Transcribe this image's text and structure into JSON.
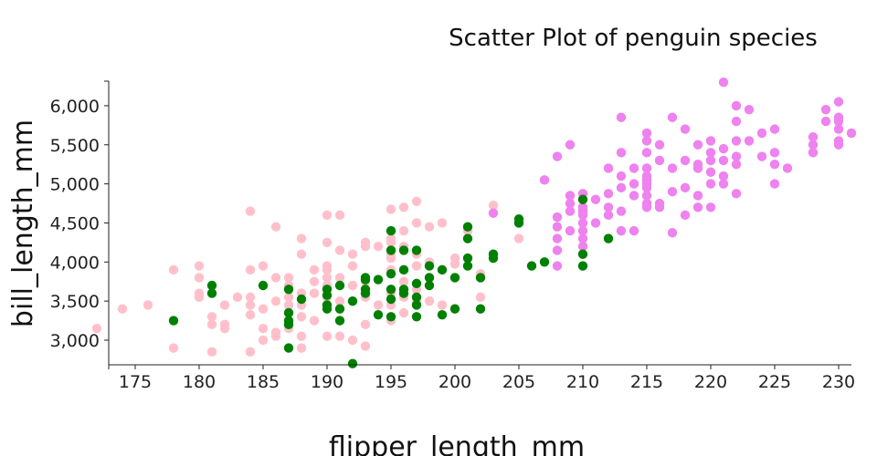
{
  "chart_data": {
    "type": "scatter",
    "title": "Scatter Plot of penguin species",
    "xlabel": "flipper_length_mm",
    "ylabel": "bill_length_mm",
    "xlim": [
      171.9,
      231
    ],
    "ylim": [
      2680,
      6320
    ],
    "x_ticks": [
      175,
      180,
      185,
      190,
      195,
      200,
      205,
      210,
      215,
      220,
      225,
      230
    ],
    "x_tick_labels": [
      "175",
      "180",
      "185",
      "190",
      "195",
      "200",
      "205",
      "210",
      "215",
      "220",
      "225",
      "230"
    ],
    "y_ticks": [
      3000,
      3500,
      4000,
      4500,
      5000,
      5500,
      6000
    ],
    "y_tick_labels": [
      "3,000",
      "3,500",
      "4,000",
      "4,500",
      "5,000",
      "5,500",
      "6,000"
    ],
    "grid": false,
    "legend": "none",
    "series": [
      {
        "color": "#ffc0cb",
        "points": [
          [
            172,
            3150
          ],
          [
            174,
            3400
          ],
          [
            176,
            3450
          ],
          [
            178,
            3900
          ],
          [
            178,
            2900
          ],
          [
            180,
            3950
          ],
          [
            180,
            3800
          ],
          [
            180,
            3600
          ],
          [
            180,
            3550
          ],
          [
            181,
            3300
          ],
          [
            181,
            3200
          ],
          [
            181,
            2850
          ],
          [
            182,
            3450
          ],
          [
            182,
            3200
          ],
          [
            182,
            3150
          ],
          [
            183,
            3550
          ],
          [
            184,
            4650
          ],
          [
            184,
            3900
          ],
          [
            184,
            3550
          ],
          [
            184,
            3450
          ],
          [
            184,
            3325
          ],
          [
            184,
            2850
          ],
          [
            185,
            3950
          ],
          [
            185,
            3400
          ],
          [
            185,
            3150
          ],
          [
            185,
            3000
          ],
          [
            186,
            4450
          ],
          [
            186,
            3800
          ],
          [
            186,
            3500
          ],
          [
            186,
            3100
          ],
          [
            186,
            3050
          ],
          [
            187,
            3800
          ],
          [
            187,
            3700
          ],
          [
            187,
            3550
          ],
          [
            187,
            3450
          ],
          [
            187,
            3350
          ],
          [
            187,
            3150
          ],
          [
            188,
            4300
          ],
          [
            188,
            4100
          ],
          [
            188,
            3600
          ],
          [
            188,
            3450
          ],
          [
            188,
            3300
          ],
          [
            188,
            3050
          ],
          [
            188,
            2900
          ],
          [
            189,
            3900
          ],
          [
            189,
            3750
          ],
          [
            189,
            3600
          ],
          [
            189,
            3250
          ],
          [
            190,
            4600
          ],
          [
            190,
            4250
          ],
          [
            190,
            3950
          ],
          [
            190,
            3900
          ],
          [
            190,
            3800
          ],
          [
            190,
            3700
          ],
          [
            190,
            3650
          ],
          [
            190,
            3550
          ],
          [
            190,
            3450
          ],
          [
            190,
            3050
          ],
          [
            191,
            4600
          ],
          [
            191,
            4150
          ],
          [
            191,
            3800
          ],
          [
            191,
            3500
          ],
          [
            191,
            3050
          ],
          [
            192,
            4100
          ],
          [
            192,
            3950
          ],
          [
            192,
            3700
          ],
          [
            192,
            3000
          ],
          [
            193,
            4250
          ],
          [
            193,
            4200
          ],
          [
            193,
            3750
          ],
          [
            193,
            3550
          ],
          [
            193,
            3200
          ],
          [
            193,
            2925
          ],
          [
            194,
            4200
          ],
          [
            194,
            3450
          ],
          [
            195,
            4675
          ],
          [
            195,
            4300
          ],
          [
            195,
            4250
          ],
          [
            195,
            4100
          ],
          [
            195,
            4050
          ],
          [
            195,
            3900
          ],
          [
            195,
            3600
          ],
          [
            195,
            3450
          ],
          [
            195,
            3250
          ],
          [
            196,
            4700
          ],
          [
            196,
            4400
          ],
          [
            196,
            4200
          ],
          [
            196,
            3750
          ],
          [
            196,
            3550
          ],
          [
            196,
            3350
          ],
          [
            197,
            4775
          ],
          [
            197,
            4500
          ],
          [
            197,
            4100
          ],
          [
            197,
            3950
          ],
          [
            197,
            3650
          ],
          [
            197,
            3500
          ],
          [
            198,
            4450
          ],
          [
            198,
            4000
          ],
          [
            198,
            3800
          ],
          [
            198,
            3500
          ],
          [
            199,
            4500
          ],
          [
            199,
            3900
          ],
          [
            199,
            3450
          ],
          [
            200,
            4050
          ],
          [
            200,
            3975
          ],
          [
            201,
            4400
          ],
          [
            202,
            3850
          ],
          [
            202,
            3550
          ],
          [
            203,
            4725
          ],
          [
            205,
            4300
          ]
        ]
      },
      {
        "color": "#ee82ee",
        "points": [
          [
            203,
            4625
          ],
          [
            207,
            5050
          ],
          [
            208,
            5350
          ],
          [
            209,
            5500
          ],
          [
            208,
            4575
          ],
          [
            208,
            4450
          ],
          [
            208,
            4300
          ],
          [
            208,
            4150
          ],
          [
            208,
            3950
          ],
          [
            209,
            4850
          ],
          [
            209,
            4750
          ],
          [
            209,
            4650
          ],
          [
            209,
            4400
          ],
          [
            210,
            4875
          ],
          [
            210,
            4800
          ],
          [
            210,
            4700
          ],
          [
            210,
            4650
          ],
          [
            210,
            4600
          ],
          [
            210,
            4500
          ],
          [
            210,
            4400
          ],
          [
            210,
            4300
          ],
          [
            210,
            4200
          ],
          [
            211,
            4800
          ],
          [
            211,
            4500
          ],
          [
            212,
            5200
          ],
          [
            212,
            4875
          ],
          [
            212,
            4700
          ],
          [
            212,
            4600
          ],
          [
            213,
            5850
          ],
          [
            213,
            5400
          ],
          [
            213,
            5100
          ],
          [
            213,
            4950
          ],
          [
            213,
            4650
          ],
          [
            213,
            4400
          ],
          [
            214,
            5200
          ],
          [
            214,
            5000
          ],
          [
            214,
            4850
          ],
          [
            214,
            4400
          ],
          [
            215,
            5650
          ],
          [
            215,
            5550
          ],
          [
            215,
            5400
          ],
          [
            215,
            5200
          ],
          [
            215,
            5100
          ],
          [
            215,
            5050
          ],
          [
            215,
            5000
          ],
          [
            215,
            4950
          ],
          [
            215,
            4850
          ],
          [
            215,
            4750
          ],
          [
            215,
            4700
          ],
          [
            216,
            5500
          ],
          [
            216,
            5300
          ],
          [
            216,
            4750
          ],
          [
            216,
            4700
          ],
          [
            217,
            5850
          ],
          [
            217,
            5200
          ],
          [
            217,
            4900
          ],
          [
            217,
            4375
          ],
          [
            218,
            5700
          ],
          [
            218,
            5300
          ],
          [
            218,
            4950
          ],
          [
            218,
            4600
          ],
          [
            219,
            5500
          ],
          [
            219,
            5250
          ],
          [
            219,
            5200
          ],
          [
            219,
            4850
          ],
          [
            219,
            4700
          ],
          [
            220,
            5550
          ],
          [
            220,
            5400
          ],
          [
            220,
            5300
          ],
          [
            220,
            5150
          ],
          [
            220,
            5000
          ],
          [
            220,
            4700
          ],
          [
            221,
            6300
          ],
          [
            221,
            5450
          ],
          [
            221,
            5300
          ],
          [
            221,
            5100
          ],
          [
            221,
            5000
          ],
          [
            222,
            6000
          ],
          [
            222,
            5800
          ],
          [
            222,
            5550
          ],
          [
            222,
            5350
          ],
          [
            222,
            5250
          ],
          [
            222,
            4875
          ],
          [
            223,
            5950
          ],
          [
            223,
            5550
          ],
          [
            224,
            5650
          ],
          [
            224,
            5350
          ],
          [
            225,
            5700
          ],
          [
            225,
            5400
          ],
          [
            225,
            5250
          ],
          [
            225,
            5000
          ],
          [
            226,
            5200
          ],
          [
            228,
            5600
          ],
          [
            228,
            5500
          ],
          [
            228,
            5400
          ],
          [
            229,
            5950
          ],
          [
            229,
            5800
          ],
          [
            230,
            6050
          ],
          [
            230,
            5850
          ],
          [
            230,
            5800
          ],
          [
            230,
            5700
          ],
          [
            230,
            5550
          ],
          [
            230,
            5500
          ],
          [
            231,
            5650
          ]
        ]
      },
      {
        "color": "#008000",
        "points": [
          [
            178,
            3250
          ],
          [
            181,
            3700
          ],
          [
            181,
            3600
          ],
          [
            185,
            3700
          ],
          [
            187,
            3650
          ],
          [
            187,
            3350
          ],
          [
            187,
            3250
          ],
          [
            187,
            3200
          ],
          [
            187,
            2900
          ],
          [
            188,
            3525
          ],
          [
            190,
            3650
          ],
          [
            190,
            3575
          ],
          [
            190,
            3450
          ],
          [
            190,
            3400
          ],
          [
            191,
            3700
          ],
          [
            191,
            3400
          ],
          [
            191,
            3250
          ],
          [
            192,
            2700
          ],
          [
            192,
            3500
          ],
          [
            193,
            3800
          ],
          [
            193,
            3775
          ],
          [
            193,
            3650
          ],
          [
            193,
            3600
          ],
          [
            194,
            3775
          ],
          [
            194,
            3325
          ],
          [
            195,
            4400
          ],
          [
            195,
            4150
          ],
          [
            195,
            3850
          ],
          [
            195,
            3650
          ],
          [
            195,
            3525
          ],
          [
            195,
            3300
          ],
          [
            196,
            4150
          ],
          [
            196,
            3900
          ],
          [
            196,
            3650
          ],
          [
            196,
            3600
          ],
          [
            197,
            4150
          ],
          [
            197,
            3725
          ],
          [
            197,
            3550
          ],
          [
            197,
            3450
          ],
          [
            197,
            3300
          ],
          [
            198,
            3950
          ],
          [
            198,
            3800
          ],
          [
            198,
            3700
          ],
          [
            199,
            3900
          ],
          [
            199,
            3325
          ],
          [
            200,
            3800
          ],
          [
            200,
            3400
          ],
          [
            201,
            4450
          ],
          [
            201,
            4300
          ],
          [
            201,
            4050
          ],
          [
            201,
            3950
          ],
          [
            202,
            3800
          ],
          [
            202,
            3400
          ],
          [
            203,
            4100
          ],
          [
            203,
            4050
          ],
          [
            205,
            4550
          ],
          [
            205,
            4500
          ],
          [
            206,
            3950
          ],
          [
            207,
            4000
          ],
          [
            210,
            4800
          ],
          [
            210,
            4100
          ],
          [
            210,
            3950
          ],
          [
            212,
            4300
          ]
        ]
      }
    ]
  }
}
